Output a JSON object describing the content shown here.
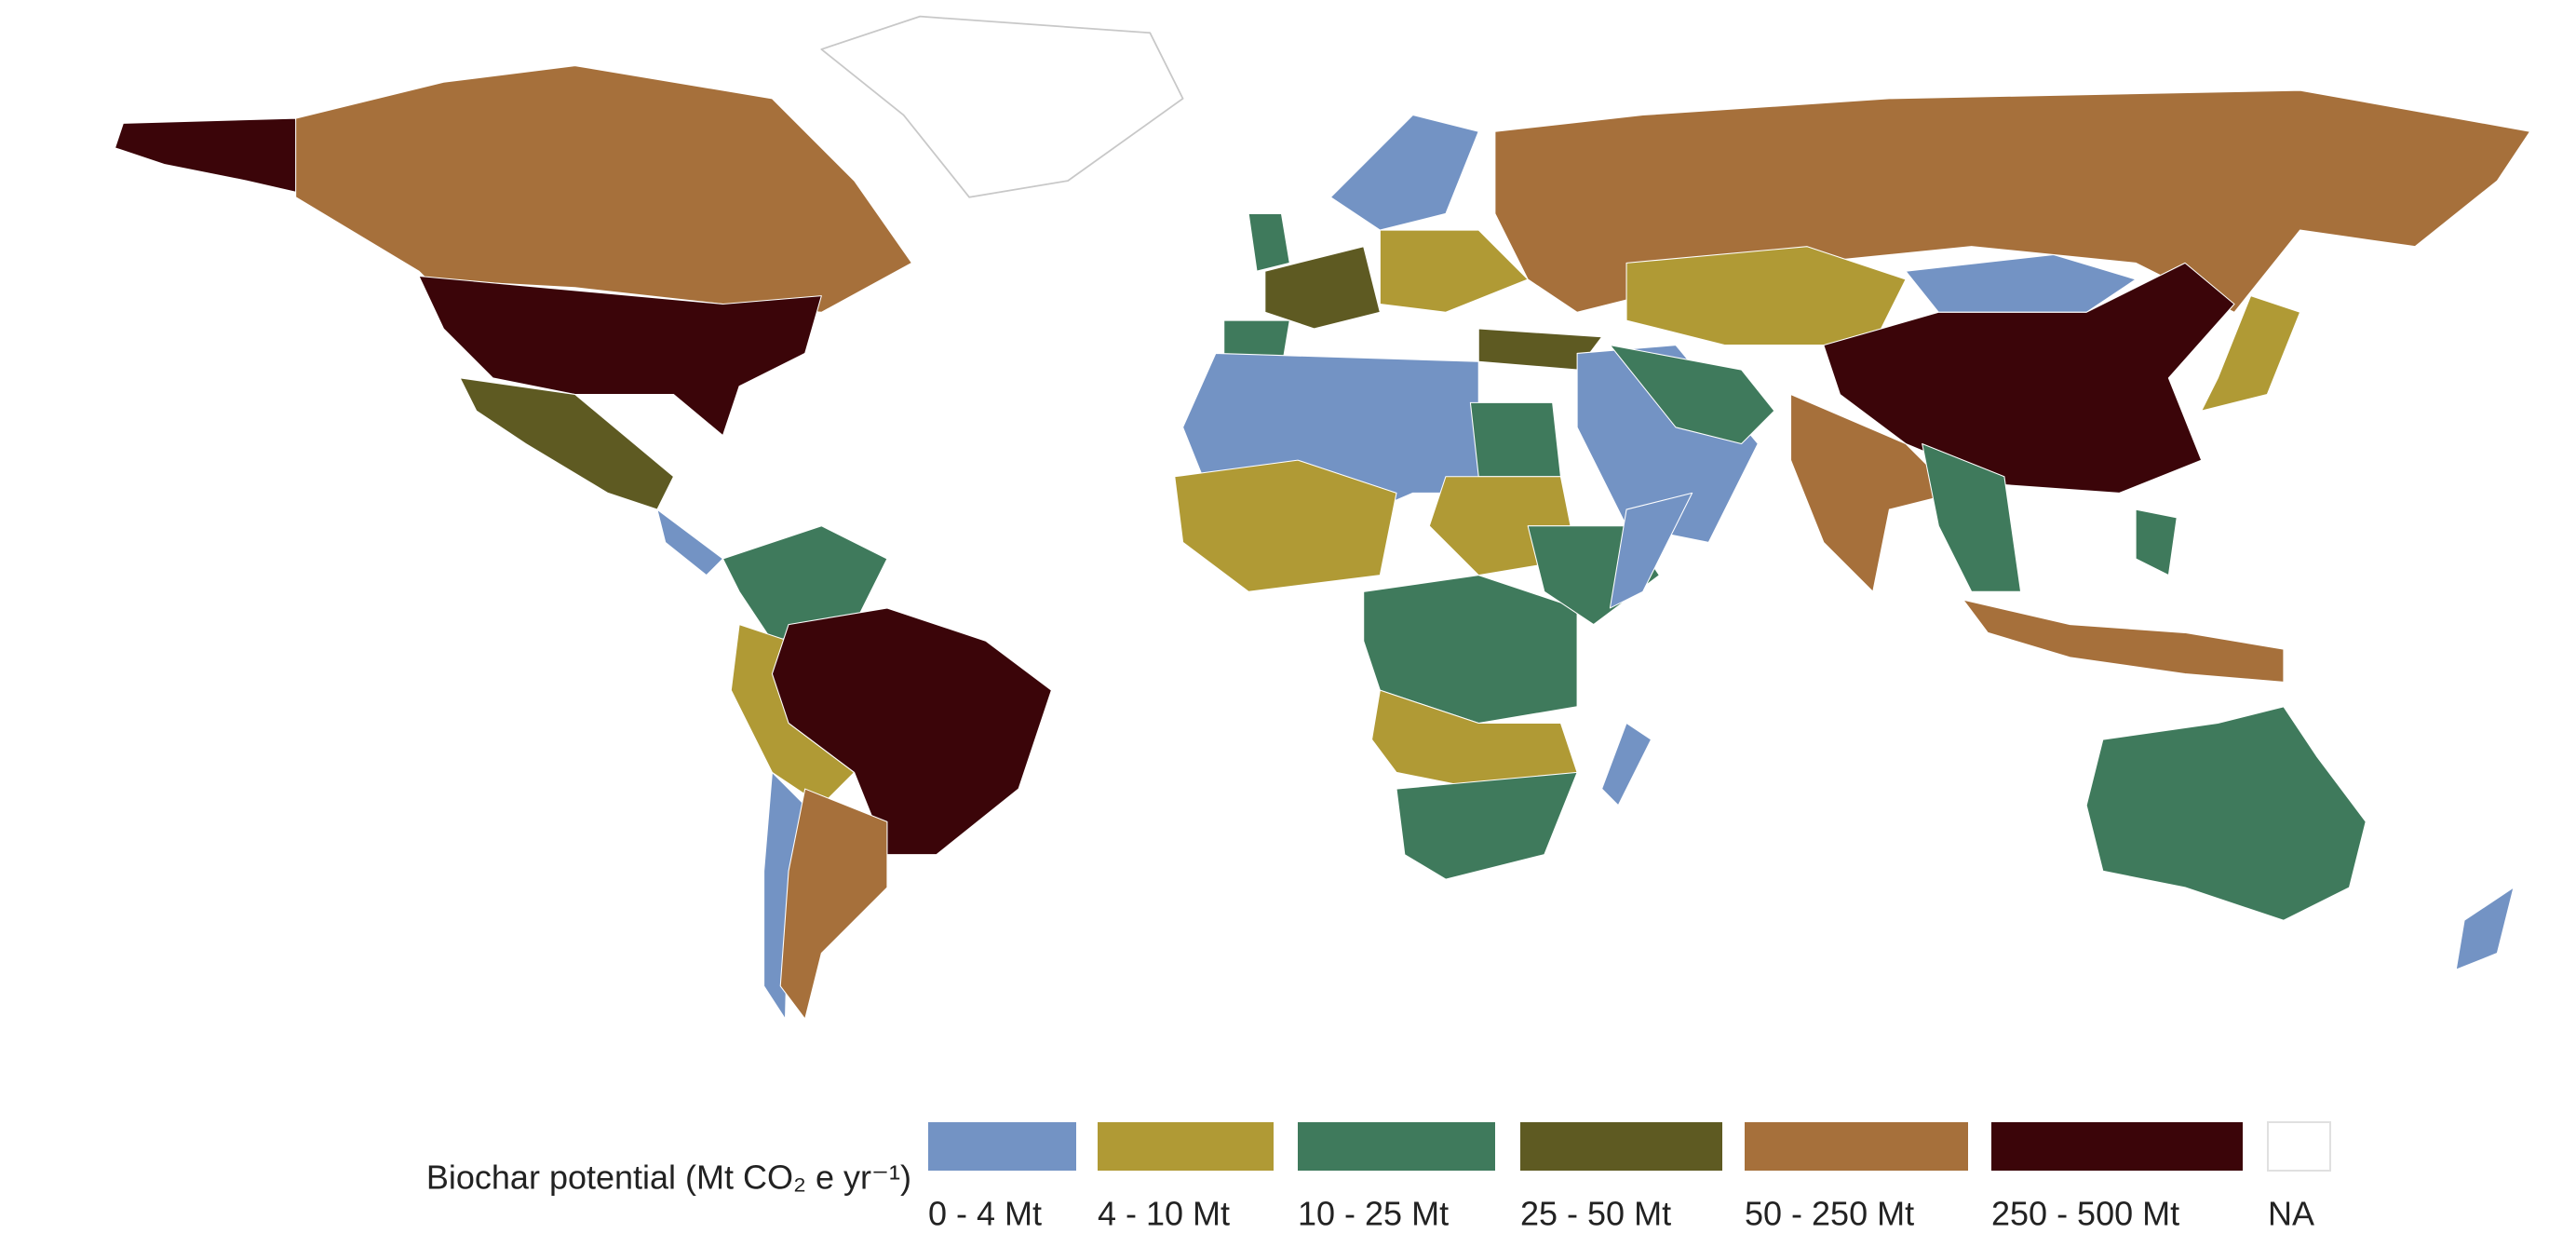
{
  "legend": {
    "title": "Biochar potential (Mt CO₂ e yr⁻¹)",
    "items": [
      {
        "label": "0 - 4 Mt",
        "color": "#7393c4"
      },
      {
        "label": "4 - 10 Mt",
        "color": "#b09a35"
      },
      {
        "label": "10 - 25 Mt",
        "color": "#3f7a5c"
      },
      {
        "label": "25 - 50 Mt",
        "color": "#5e5a22"
      },
      {
        "label": "50 - 250 Mt",
        "color": "#a6703b"
      },
      {
        "label": "250 - 500 Mt",
        "color": "#3b0509"
      },
      {
        "label": "NA",
        "color": "#ffffff"
      }
    ]
  }
}
